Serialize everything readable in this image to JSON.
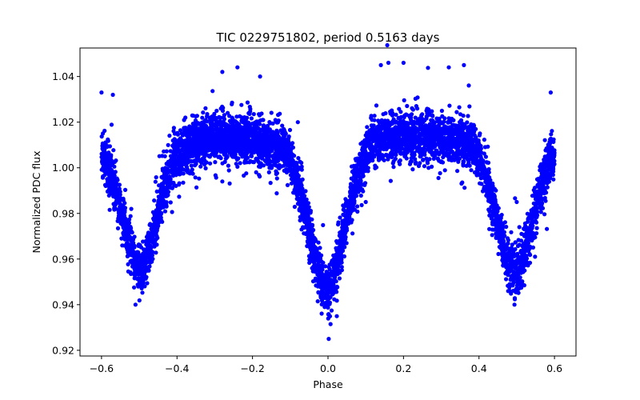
{
  "chart_data": {
    "type": "scatter",
    "title": "TIC 0229751802, period 0.5163 days",
    "xlabel": "Phase",
    "ylabel": "Normalized PDC flux",
    "xlim": [
      -0.657,
      0.657
    ],
    "ylim": [
      0.9175,
      1.0525
    ],
    "xticks": [
      -0.6,
      -0.4,
      -0.2,
      0.0,
      0.2,
      0.4,
      0.6
    ],
    "xtick_labels": [
      "−0.6",
      "−0.4",
      "−0.2",
      "0.0",
      "0.2",
      "0.4",
      "0.6"
    ],
    "yticks": [
      0.92,
      0.94,
      0.96,
      0.98,
      1.0,
      1.02,
      1.04
    ],
    "ytick_labels": [
      "0.92",
      "0.94",
      "0.96",
      "0.98",
      "1.00",
      "1.02",
      "1.04"
    ],
    "grid": false,
    "marker_color": "#0000ff",
    "series": [
      {
        "profile_x": [
          -0.6,
          -0.57,
          -0.55,
          -0.53,
          -0.51,
          -0.5,
          -0.49,
          -0.47,
          -0.45,
          -0.43,
          -0.41,
          -0.38,
          -0.34,
          -0.3,
          -0.26,
          -0.22,
          -0.18,
          -0.14,
          -0.12,
          -0.1,
          -0.08,
          -0.06,
          -0.04,
          -0.02,
          0.0,
          0.02,
          0.04,
          0.06,
          0.08,
          0.1,
          0.12,
          0.14,
          0.18,
          0.22,
          0.26,
          0.3,
          0.34,
          0.38,
          0.4,
          0.42,
          0.44,
          0.46,
          0.48,
          0.5,
          0.51,
          0.53,
          0.55,
          0.57,
          0.6
        ],
        "profile_y": [
          1.008,
          0.995,
          0.982,
          0.968,
          0.958,
          0.955,
          0.957,
          0.967,
          0.98,
          0.993,
          1.002,
          1.008,
          1.012,
          1.013,
          1.013,
          1.013,
          1.012,
          1.01,
          1.008,
          1.004,
          0.994,
          0.98,
          0.965,
          0.952,
          0.946,
          0.955,
          0.97,
          0.985,
          0.997,
          1.006,
          1.011,
          1.013,
          1.014,
          1.014,
          1.014,
          1.013,
          1.012,
          1.01,
          1.005,
          0.995,
          0.982,
          0.968,
          0.958,
          0.955,
          0.957,
          0.968,
          0.982,
          0.994,
          1.008
        ],
        "scatter_sd": 0.006,
        "n_points": 6000,
        "outliers": [
          {
            "x": 0.002,
            "y": 0.925
          },
          {
            "x": -0.51,
            "y": 0.94
          },
          {
            "x": 0.494,
            "y": 0.94
          },
          {
            "x": -0.24,
            "y": 1.044
          },
          {
            "x": 0.14,
            "y": 1.045
          },
          {
            "x": 0.16,
            "y": 1.046
          },
          {
            "x": 0.2,
            "y": 1.046
          },
          {
            "x": 0.36,
            "y": 1.045
          },
          {
            "x": 0.32,
            "y": 1.044
          },
          {
            "x": -0.28,
            "y": 1.042
          },
          {
            "x": -0.18,
            "y": 1.04
          },
          {
            "x": -0.6,
            "y": 1.033
          },
          {
            "x": 0.59,
            "y": 1.033
          },
          {
            "x": -0.57,
            "y": 1.032
          },
          {
            "x": -0.08,
            "y": 1.02
          },
          {
            "x": 0.5,
            "y": 0.985
          },
          {
            "x": -0.28,
            "y": 0.994
          },
          {
            "x": 0.1,
            "y": 0.985
          }
        ]
      }
    ]
  }
}
